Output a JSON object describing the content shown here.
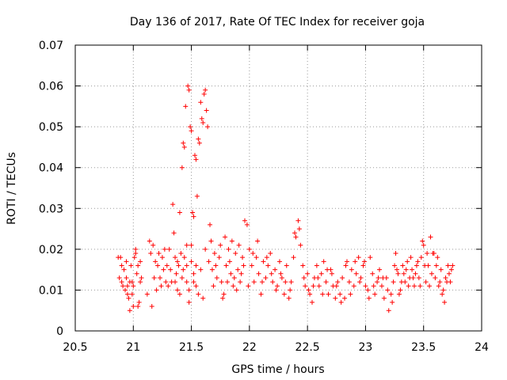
{
  "chart_data": {
    "type": "scatter",
    "title": "Day 136 of 2017, Rate Of TEC Index for receiver goja",
    "xlabel": "GPS time / hours",
    "ylabel": "ROTI / TECUs",
    "xlim": [
      20.5,
      24
    ],
    "ylim": [
      0,
      0.07
    ],
    "x_ticks": [
      20.5,
      21,
      21.5,
      22,
      22.5,
      23,
      23.5,
      24
    ],
    "x_tick_labels": [
      "20.5",
      "21",
      "21.5",
      "22",
      "22.5",
      "23",
      "23.5",
      "24"
    ],
    "y_ticks": [
      0,
      0.01,
      0.02,
      0.03,
      0.04,
      0.05,
      0.06,
      0.07
    ],
    "y_tick_labels": [
      "0",
      "0.01",
      "0.02",
      "0.03",
      "0.04",
      "0.05",
      "0.06",
      "0.07"
    ],
    "grid": true,
    "marker": "plus",
    "marker_color": "#ff0000",
    "series": [
      {
        "name": "ROTI",
        "points": [
          [
            20.88,
            0.013
          ],
          [
            20.89,
            0.018
          ],
          [
            20.9,
            0.012
          ],
          [
            20.91,
            0.011
          ],
          [
            20.92,
            0.015
          ],
          [
            20.93,
            0.01
          ],
          [
            20.94,
            0.013
          ],
          [
            20.95,
            0.009
          ],
          [
            20.96,
            0.008
          ],
          [
            20.97,
            0.012
          ],
          [
            20.98,
            0.016
          ],
          [
            20.99,
            0.012
          ],
          [
            21.0,
            0.011
          ],
          [
            21.01,
            0.018
          ],
          [
            21.02,
            0.019
          ],
          [
            21.03,
            0.014
          ],
          [
            21.04,
            0.006
          ],
          [
            21.05,
            0.007
          ],
          [
            21.06,
            0.017
          ],
          [
            21.07,
            0.013
          ],
          [
            20.87,
            0.018
          ],
          [
            20.9,
            0.016
          ],
          [
            20.94,
            0.017
          ],
          [
            20.97,
            0.005
          ],
          [
            21.0,
            0.006
          ],
          [
            21.02,
            0.02
          ],
          [
            21.04,
            0.016
          ],
          [
            21.06,
            0.012
          ],
          [
            20.95,
            0.011
          ],
          [
            20.99,
            0.009
          ],
          [
            21.12,
            0.009
          ],
          [
            21.14,
            0.022
          ],
          [
            21.15,
            0.019
          ],
          [
            21.16,
            0.006
          ],
          [
            21.17,
            0.021
          ],
          [
            21.18,
            0.013
          ],
          [
            21.19,
            0.017
          ],
          [
            21.2,
            0.01
          ],
          [
            21.21,
            0.016
          ],
          [
            21.22,
            0.019
          ],
          [
            21.23,
            0.013
          ],
          [
            21.24,
            0.011
          ],
          [
            21.25,
            0.018
          ],
          [
            21.26,
            0.015
          ],
          [
            21.27,
            0.02
          ],
          [
            21.28,
            0.012
          ],
          [
            21.29,
            0.016
          ],
          [
            21.3,
            0.011
          ],
          [
            21.31,
            0.02
          ],
          [
            21.32,
            0.015
          ],
          [
            21.33,
            0.012
          ],
          [
            21.34,
            0.031
          ],
          [
            21.35,
            0.024
          ],
          [
            21.36,
            0.018
          ],
          [
            21.37,
            0.014
          ],
          [
            21.38,
            0.01
          ],
          [
            21.39,
            0.016
          ],
          [
            21.4,
            0.029
          ],
          [
            21.41,
            0.019
          ],
          [
            21.42,
            0.04
          ],
          [
            21.43,
            0.046
          ],
          [
            21.44,
            0.045
          ],
          [
            21.45,
            0.055
          ],
          [
            21.46,
            0.021
          ],
          [
            21.47,
            0.06
          ],
          [
            21.48,
            0.059
          ],
          [
            21.49,
            0.05
          ],
          [
            21.5,
            0.049
          ],
          [
            21.51,
            0.029
          ],
          [
            21.52,
            0.028
          ],
          [
            21.53,
            0.043
          ],
          [
            21.54,
            0.042
          ],
          [
            21.55,
            0.033
          ],
          [
            21.56,
            0.047
          ],
          [
            21.57,
            0.046
          ],
          [
            21.58,
            0.056
          ],
          [
            21.59,
            0.052
          ],
          [
            21.6,
            0.051
          ],
          [
            21.61,
            0.058
          ],
          [
            21.62,
            0.059
          ],
          [
            21.63,
            0.054
          ],
          [
            21.64,
            0.05
          ],
          [
            21.65,
            0.017
          ],
          [
            21.66,
            0.026
          ],
          [
            21.67,
            0.022
          ],
          [
            21.68,
            0.015
          ],
          [
            21.69,
            0.011
          ],
          [
            21.7,
            0.019
          ],
          [
            21.71,
            0.016
          ],
          [
            21.72,
            0.013
          ],
          [
            21.43,
            0.015
          ],
          [
            21.46,
            0.012
          ],
          [
            21.48,
            0.01
          ],
          [
            21.5,
            0.017
          ],
          [
            21.52,
            0.014
          ],
          [
            21.54,
            0.011
          ],
          [
            21.56,
            0.009
          ],
          [
            21.58,
            0.015
          ],
          [
            21.6,
            0.008
          ],
          [
            21.62,
            0.02
          ],
          [
            21.36,
            0.012
          ],
          [
            21.38,
            0.017
          ],
          [
            21.4,
            0.009
          ],
          [
            21.42,
            0.013
          ],
          [
            21.44,
            0.018
          ],
          [
            21.46,
            0.016
          ],
          [
            21.48,
            0.007
          ],
          [
            21.5,
            0.021
          ],
          [
            21.52,
            0.012
          ],
          [
            21.54,
            0.016
          ],
          [
            21.74,
            0.018
          ],
          [
            21.76,
            0.012
          ],
          [
            21.78,
            0.009
          ],
          [
            21.8,
            0.016
          ],
          [
            21.82,
            0.02
          ],
          [
            21.84,
            0.014
          ],
          [
            21.86,
            0.011
          ],
          [
            21.88,
            0.019
          ],
          [
            21.9,
            0.015
          ],
          [
            21.92,
            0.012
          ],
          [
            21.94,
            0.018
          ],
          [
            21.96,
            0.027
          ],
          [
            21.98,
            0.026
          ],
          [
            22.0,
            0.02
          ],
          [
            22.02,
            0.016
          ],
          [
            22.04,
            0.012
          ],
          [
            22.06,
            0.018
          ],
          [
            22.08,
            0.014
          ],
          [
            22.1,
            0.009
          ],
          [
            22.12,
            0.017
          ],
          [
            22.14,
            0.013
          ],
          [
            22.16,
            0.016
          ],
          [
            22.18,
            0.019
          ],
          [
            22.2,
            0.012
          ],
          [
            22.22,
            0.015
          ],
          [
            22.24,
            0.011
          ],
          [
            22.26,
            0.017
          ],
          [
            22.28,
            0.013
          ],
          [
            22.3,
            0.009
          ],
          [
            22.32,
            0.016
          ],
          [
            21.75,
            0.021
          ],
          [
            21.79,
            0.023
          ],
          [
            21.83,
            0.017
          ],
          [
            21.87,
            0.013
          ],
          [
            21.91,
            0.021
          ],
          [
            21.95,
            0.016
          ],
          [
            21.99,
            0.011
          ],
          [
            22.03,
            0.019
          ],
          [
            22.07,
            0.022
          ],
          [
            22.11,
            0.012
          ],
          [
            22.15,
            0.018
          ],
          [
            22.19,
            0.014
          ],
          [
            22.23,
            0.01
          ],
          [
            22.27,
            0.014
          ],
          [
            22.31,
            0.012
          ],
          [
            21.77,
            0.008
          ],
          [
            21.81,
            0.012
          ],
          [
            21.85,
            0.022
          ],
          [
            21.89,
            0.01
          ],
          [
            21.93,
            0.014
          ],
          [
            22.34,
            0.008
          ],
          [
            22.36,
            0.012
          ],
          [
            22.38,
            0.018
          ],
          [
            22.4,
            0.023
          ],
          [
            22.42,
            0.027
          ],
          [
            22.44,
            0.021
          ],
          [
            22.46,
            0.016
          ],
          [
            22.48,
            0.011
          ],
          [
            22.5,
            0.014
          ],
          [
            22.52,
            0.009
          ],
          [
            22.54,
            0.007
          ],
          [
            22.56,
            0.013
          ],
          [
            22.58,
            0.016
          ],
          [
            22.6,
            0.011
          ],
          [
            22.62,
            0.014
          ],
          [
            22.64,
            0.017
          ],
          [
            22.66,
            0.012
          ],
          [
            22.68,
            0.009
          ],
          [
            22.7,
            0.015
          ],
          [
            22.72,
            0.011
          ],
          [
            22.35,
            0.01
          ],
          [
            22.39,
            0.024
          ],
          [
            22.43,
            0.025
          ],
          [
            22.47,
            0.013
          ],
          [
            22.51,
            0.01
          ],
          [
            22.55,
            0.011
          ],
          [
            22.59,
            0.013
          ],
          [
            22.63,
            0.009
          ],
          [
            22.67,
            0.015
          ],
          [
            22.71,
            0.014
          ],
          [
            22.74,
            0.008
          ],
          [
            22.76,
            0.012
          ],
          [
            22.78,
            0.009
          ],
          [
            22.8,
            0.013
          ],
          [
            22.82,
            0.008
          ],
          [
            22.84,
            0.017
          ],
          [
            22.86,
            0.012
          ],
          [
            22.88,
            0.015
          ],
          [
            22.9,
            0.011
          ],
          [
            22.92,
            0.014
          ],
          [
            22.94,
            0.018
          ],
          [
            22.96,
            0.013
          ],
          [
            22.98,
            0.016
          ],
          [
            23.0,
            0.011
          ],
          [
            23.02,
            0.01
          ],
          [
            23.04,
            0.018
          ],
          [
            23.06,
            0.014
          ],
          [
            23.08,
            0.009
          ],
          [
            23.1,
            0.012
          ],
          [
            23.12,
            0.015
          ],
          [
            22.75,
            0.011
          ],
          [
            22.79,
            0.007
          ],
          [
            22.83,
            0.016
          ],
          [
            22.87,
            0.009
          ],
          [
            22.91,
            0.017
          ],
          [
            22.95,
            0.012
          ],
          [
            22.99,
            0.017
          ],
          [
            23.03,
            0.008
          ],
          [
            23.07,
            0.011
          ],
          [
            23.11,
            0.013
          ],
          [
            23.14,
            0.011
          ],
          [
            23.16,
            0.008
          ],
          [
            23.18,
            0.013
          ],
          [
            23.2,
            0.005
          ],
          [
            23.22,
            0.009
          ],
          [
            23.24,
            0.012
          ],
          [
            23.26,
            0.019
          ],
          [
            23.28,
            0.014
          ],
          [
            23.3,
            0.01
          ],
          [
            23.32,
            0.016
          ],
          [
            23.34,
            0.012
          ],
          [
            23.36,
            0.017
          ],
          [
            23.38,
            0.013
          ],
          [
            23.4,
            0.015
          ],
          [
            23.42,
            0.011
          ],
          [
            23.44,
            0.016
          ],
          [
            23.46,
            0.013
          ],
          [
            23.48,
            0.018
          ],
          [
            23.5,
            0.021
          ],
          [
            23.52,
            0.012
          ],
          [
            23.15,
            0.013
          ],
          [
            23.19,
            0.01
          ],
          [
            23.23,
            0.007
          ],
          [
            23.27,
            0.015
          ],
          [
            23.31,
            0.012
          ],
          [
            23.35,
            0.015
          ],
          [
            23.39,
            0.018
          ],
          [
            23.43,
            0.014
          ],
          [
            23.47,
            0.011
          ],
          [
            23.51,
            0.016
          ],
          [
            23.54,
            0.016
          ],
          [
            23.56,
            0.023
          ],
          [
            23.58,
            0.019
          ],
          [
            23.6,
            0.013
          ],
          [
            23.62,
            0.018
          ],
          [
            23.64,
            0.012
          ],
          [
            23.66,
            0.009
          ],
          [
            23.68,
            0.007
          ],
          [
            23.7,
            0.012
          ],
          [
            23.72,
            0.014
          ],
          [
            23.74,
            0.015
          ],
          [
            23.55,
            0.011
          ],
          [
            23.57,
            0.014
          ],
          [
            23.59,
            0.019
          ],
          [
            23.61,
            0.016
          ],
          [
            23.63,
            0.011
          ],
          [
            23.65,
            0.015
          ],
          [
            23.67,
            0.01
          ],
          [
            23.69,
            0.013
          ],
          [
            23.71,
            0.016
          ],
          [
            23.73,
            0.012
          ],
          [
            23.75,
            0.016
          ],
          [
            23.53,
            0.019
          ],
          [
            23.49,
            0.022
          ],
          [
            23.45,
            0.017
          ],
          [
            23.41,
            0.013
          ],
          [
            23.37,
            0.011
          ],
          [
            23.33,
            0.014
          ],
          [
            23.29,
            0.009
          ],
          [
            23.25,
            0.016
          ]
        ]
      }
    ]
  }
}
